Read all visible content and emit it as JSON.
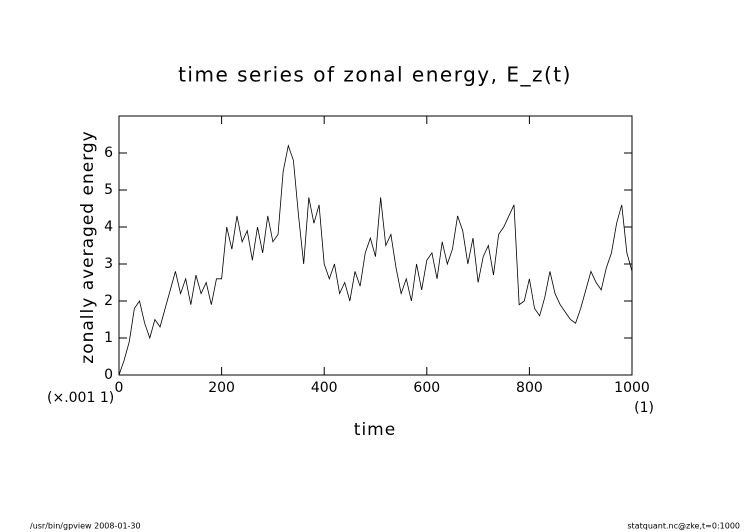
{
  "chart_data": {
    "type": "line",
    "title": "time series of zonal energy, E_z(t)",
    "xlabel": "time",
    "ylabel": "zonally averaged energy",
    "y_scale_note": "(×.001 1)",
    "x_unit_note": "(1)",
    "footer_left": "/usr/bin/gpview   2008-01-30",
    "footer_right": "statquant.nc@zke,t=0:1000",
    "color": "#000000",
    "xlim": [
      0,
      1000
    ],
    "ylim": [
      0,
      7
    ],
    "xticks": [
      0,
      200,
      400,
      600,
      800,
      1000
    ],
    "yticks": [
      0,
      1,
      2,
      3,
      4,
      5,
      6
    ],
    "x": [
      0,
      10,
      20,
      30,
      40,
      50,
      60,
      70,
      80,
      90,
      100,
      110,
      120,
      130,
      140,
      150,
      160,
      170,
      180,
      190,
      200,
      210,
      220,
      230,
      240,
      250,
      260,
      270,
      280,
      290,
      300,
      310,
      320,
      330,
      340,
      350,
      360,
      370,
      380,
      390,
      400,
      410,
      420,
      430,
      440,
      450,
      460,
      470,
      480,
      490,
      500,
      510,
      520,
      530,
      540,
      550,
      560,
      570,
      580,
      590,
      600,
      610,
      620,
      630,
      640,
      650,
      660,
      670,
      680,
      690,
      700,
      710,
      720,
      730,
      740,
      750,
      760,
      770,
      780,
      790,
      800,
      810,
      820,
      830,
      840,
      850,
      860,
      870,
      880,
      890,
      900,
      910,
      920,
      930,
      940,
      950,
      960,
      970,
      980,
      990,
      1000
    ],
    "values": [
      0,
      0.4,
      0.9,
      1.8,
      2.0,
      1.4,
      1.0,
      1.5,
      1.3,
      1.8,
      2.3,
      2.8,
      2.2,
      2.6,
      1.9,
      2.7,
      2.2,
      2.5,
      1.9,
      2.6,
      2.6,
      4.0,
      3.4,
      4.3,
      3.6,
      3.9,
      3.1,
      4.0,
      3.3,
      4.3,
      3.6,
      3.8,
      5.5,
      6.2,
      5.8,
      4.3,
      3.0,
      4.8,
      4.1,
      4.6,
      3.0,
      2.6,
      3.0,
      2.2,
      2.5,
      2.0,
      2.8,
      2.4,
      3.3,
      3.7,
      3.2,
      4.8,
      3.5,
      3.8,
      2.9,
      2.2,
      2.6,
      2.0,
      3.0,
      2.3,
      3.1,
      3.3,
      2.6,
      3.6,
      3.0,
      3.4,
      4.3,
      3.9,
      3.0,
      3.7,
      2.5,
      3.2,
      3.5,
      2.7,
      3.8,
      4.0,
      4.3,
      4.6,
      1.9,
      2.0,
      2.6,
      1.8,
      1.6,
      2.1,
      2.8,
      2.2,
      1.9,
      1.7,
      1.5,
      1.4,
      1.8,
      2.3,
      2.8,
      2.5,
      2.3,
      2.9,
      3.3,
      4.1,
      4.6,
      3.3,
      2.8
    ]
  }
}
